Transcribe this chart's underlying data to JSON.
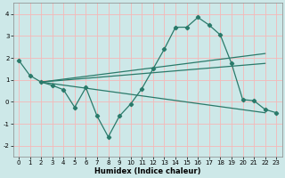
{
  "xlabel": "Humidex (Indice chaleur)",
  "ylabel": "",
  "bg_color": "#cde8e8",
  "grid_color": "#f5b8b8",
  "line_color": "#2a7a6a",
  "xlim": [
    -0.5,
    23.5
  ],
  "ylim": [
    -2.5,
    4.5
  ],
  "xticks": [
    0,
    1,
    2,
    3,
    4,
    5,
    6,
    7,
    8,
    9,
    10,
    11,
    12,
    13,
    14,
    15,
    16,
    17,
    18,
    19,
    20,
    21,
    22,
    23
  ],
  "yticks": [
    -2,
    -1,
    0,
    1,
    2,
    3,
    4
  ],
  "series": [
    {
      "x": [
        0,
        1,
        2,
        3,
        4,
        5,
        6,
        7,
        8,
        9,
        10,
        11,
        12,
        13,
        14,
        15,
        16,
        17,
        18,
        19,
        20,
        21,
        22,
        23
      ],
      "y": [
        1.9,
        1.2,
        0.9,
        0.75,
        0.55,
        -0.25,
        0.65,
        -0.65,
        -1.6,
        -0.65,
        -0.1,
        0.6,
        1.5,
        2.4,
        3.4,
        3.4,
        3.85,
        3.5,
        3.05,
        1.75,
        0.1,
        0.05,
        -0.35,
        -0.5
      ],
      "marker": true
    },
    {
      "x": [
        2,
        22
      ],
      "y": [
        0.9,
        2.2
      ],
      "marker": false
    },
    {
      "x": [
        2,
        22
      ],
      "y": [
        0.9,
        1.75
      ],
      "marker": false
    },
    {
      "x": [
        2,
        22
      ],
      "y": [
        0.9,
        -0.5
      ],
      "marker": false
    }
  ],
  "figsize": [
    3.2,
    2.0
  ],
  "dpi": 100,
  "tick_fontsize": 5,
  "xlabel_fontsize": 6,
  "xlabel_fontweight": "bold"
}
